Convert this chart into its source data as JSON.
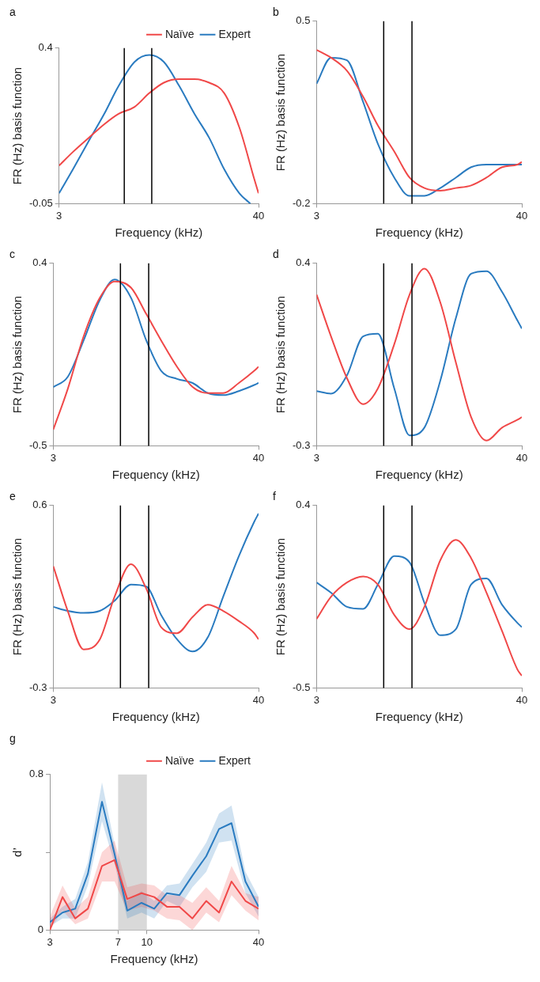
{
  "chart_data": [
    {
      "type": "line",
      "title": "a",
      "xlabel": "Frequency (kHz)",
      "ylabel": "FR (Hz) basis function",
      "log": "x",
      "xlim": [
        3,
        40
      ],
      "xticks": [
        3,
        40
      ],
      "ylim": [
        -0.05,
        0.4
      ],
      "yticks": [
        -0.05,
        0.4
      ],
      "legend": "top right",
      "ref_lines": [
        {
          "axis": "x",
          "value": 7,
          "color": "#000000"
        },
        {
          "axis": "x",
          "value": 10,
          "color": "#000000"
        }
      ],
      "x": [
        3,
        3.6,
        4.4,
        5.4,
        6.5,
        8,
        9.7,
        11.7,
        14.3,
        17.4,
        21.1,
        25.6,
        31.2,
        37.9,
        40
      ],
      "series": [
        {
          "name": "Naïve",
          "color": "#f04848",
          "values": [
            0.06,
            0.1,
            0.14,
            0.18,
            0.21,
            0.23,
            0.27,
            0.3,
            0.31,
            0.31,
            0.3,
            0.27,
            0.17,
            0.02,
            -0.02
          ]
        },
        {
          "name": "Expert",
          "color": "#2a7bc0",
          "x": [
            3,
            3.6,
            4.4,
            5.4,
            6.5,
            8,
            9.7,
            11.7,
            14.3,
            17.4,
            21.1,
            25.6,
            31.2,
            36
          ],
          "values": [
            -0.02,
            0.05,
            0.13,
            0.21,
            0.29,
            0.36,
            0.38,
            0.36,
            0.29,
            0.21,
            0.14,
            0.05,
            -0.02,
            -0.05
          ]
        }
      ]
    },
    {
      "type": "line",
      "title": "b",
      "xlabel": "Frequency (kHz)",
      "ylabel": "FR (Hz) basis function",
      "log": "x",
      "xlim": [
        3,
        40
      ],
      "xticks": [
        3,
        40
      ],
      "ylim": [
        -0.2,
        0.5
      ],
      "yticks": [
        -0.2,
        0.5
      ],
      "ref_lines": [
        {
          "axis": "x",
          "value": 7,
          "color": "#000000"
        },
        {
          "axis": "x",
          "value": 10,
          "color": "#000000"
        }
      ],
      "x": [
        3,
        3.6,
        4.4,
        5.4,
        6.5,
        8,
        9.7,
        11.7,
        14.3,
        17.4,
        21.1,
        25.6,
        31.2,
        37.9,
        40
      ],
      "series": [
        {
          "color": "#f04848",
          "values": [
            0.39,
            0.36,
            0.31,
            0.21,
            0.1,
            0.0,
            -0.1,
            -0.14,
            -0.15,
            -0.14,
            -0.13,
            -0.1,
            -0.06,
            -0.05,
            -0.04
          ]
        },
        {
          "color": "#2a7bc0",
          "values": [
            0.26,
            0.36,
            0.35,
            0.19,
            0.03,
            -0.1,
            -0.17,
            -0.17,
            -0.14,
            -0.1,
            -0.06,
            -0.05,
            -0.05,
            -0.05,
            -0.05
          ]
        }
      ]
    },
    {
      "type": "line",
      "title": "c",
      "xlabel": "Frequency (kHz)",
      "ylabel": "FR (Hz) basis function",
      "log": "x",
      "xlim": [
        3,
        40
      ],
      "xticks": [
        3,
        40
      ],
      "ylim": [
        -0.5,
        0.4
      ],
      "yticks": [
        -0.5,
        0.4
      ],
      "ref_lines": [
        {
          "axis": "x",
          "value": 7,
          "color": "#000000"
        },
        {
          "axis": "x",
          "value": 10,
          "color": "#000000"
        }
      ],
      "x": [
        3,
        3.6,
        4.4,
        5.4,
        6.5,
        8,
        9.7,
        11.7,
        14.3,
        17.4,
        21.1,
        25.6,
        31.2,
        37.9,
        40
      ],
      "series": [
        {
          "color": "#f04848",
          "values": [
            -0.42,
            -0.22,
            0.04,
            0.23,
            0.31,
            0.28,
            0.15,
            0.02,
            -0.11,
            -0.21,
            -0.24,
            -0.24,
            -0.19,
            -0.13,
            -0.11
          ]
        },
        {
          "color": "#2a7bc0",
          "values": [
            -0.21,
            -0.16,
            0.02,
            0.22,
            0.32,
            0.23,
            0.02,
            -0.13,
            -0.17,
            -0.19,
            -0.24,
            -0.25,
            -0.23,
            -0.2,
            -0.19
          ]
        }
      ]
    },
    {
      "type": "line",
      "title": "d",
      "xlabel": "Frequency (kHz)",
      "ylabel": "FR (Hz) basis function",
      "log": "x",
      "xlim": [
        3,
        40
      ],
      "xticks": [
        3,
        40
      ],
      "ylim": [
        -0.3,
        0.4
      ],
      "yticks": [
        -0.3,
        0.4
      ],
      "ref_lines": [
        {
          "axis": "x",
          "value": 7,
          "color": "#000000"
        },
        {
          "axis": "x",
          "value": 10,
          "color": "#000000"
        }
      ],
      "x": [
        3,
        3.6,
        4.4,
        5.4,
        6.5,
        8,
        9.7,
        11.7,
        14.3,
        17.4,
        21.1,
        25.6,
        31.2,
        37.9,
        40
      ],
      "series": [
        {
          "color": "#f04848",
          "values": [
            0.28,
            0.12,
            -0.04,
            -0.14,
            -0.08,
            0.09,
            0.28,
            0.38,
            0.25,
            0.02,
            -0.19,
            -0.28,
            -0.23,
            -0.2,
            -0.19
          ]
        },
        {
          "color": "#2a7bc0",
          "values": [
            -0.09,
            -0.1,
            -0.03,
            0.12,
            0.13,
            -0.08,
            -0.26,
            -0.23,
            -0.05,
            0.19,
            0.36,
            0.37,
            0.29,
            0.18,
            0.15
          ]
        }
      ]
    },
    {
      "type": "line",
      "title": "e",
      "xlabel": "Frequency (kHz)",
      "ylabel": "FR (Hz) basis function",
      "log": "x",
      "xlim": [
        3,
        40
      ],
      "xticks": [
        3,
        40
      ],
      "ylim": [
        -0.3,
        0.6
      ],
      "yticks": [
        -0.3,
        0.6
      ],
      "ref_lines": [
        {
          "axis": "x",
          "value": 7,
          "color": "#000000"
        },
        {
          "axis": "x",
          "value": 10,
          "color": "#000000"
        }
      ],
      "x": [
        3,
        3.6,
        4.4,
        5.4,
        6.5,
        8,
        9.7,
        11.7,
        14.3,
        17.4,
        21.1,
        25.6,
        31.2,
        37.9,
        40
      ],
      "series": [
        {
          "color": "#f04848",
          "values": [
            0.3,
            0.08,
            -0.11,
            -0.06,
            0.15,
            0.31,
            0.19,
            0.0,
            -0.03,
            0.05,
            0.11,
            0.08,
            0.03,
            -0.03,
            -0.06
          ]
        },
        {
          "color": "#2a7bc0",
          "values": [
            0.1,
            0.08,
            0.07,
            0.08,
            0.13,
            0.21,
            0.2,
            0.06,
            -0.06,
            -0.12,
            -0.05,
            0.15,
            0.35,
            0.52,
            0.56
          ]
        }
      ]
    },
    {
      "type": "line",
      "title": "f",
      "xlabel": "Frequency (kHz)",
      "ylabel": "FR (Hz) basis function",
      "log": "x",
      "xlim": [
        3,
        40
      ],
      "xticks": [
        3,
        40
      ],
      "ylim": [
        -0.5,
        0.4
      ],
      "yticks": [
        -0.5,
        0.4
      ],
      "ref_lines": [
        {
          "axis": "x",
          "value": 7,
          "color": "#000000"
        },
        {
          "axis": "x",
          "value": 10,
          "color": "#000000"
        }
      ],
      "x": [
        3,
        3.6,
        4.4,
        5.4,
        6.5,
        8,
        9.7,
        11.7,
        14.3,
        17.4,
        21.1,
        25.6,
        31.2,
        37.9,
        40
      ],
      "series": [
        {
          "color": "#f04848",
          "values": [
            -0.16,
            -0.05,
            0.02,
            0.05,
            0.01,
            -0.14,
            -0.21,
            -0.1,
            0.13,
            0.23,
            0.14,
            -0.03,
            -0.22,
            -0.41,
            -0.44
          ]
        },
        {
          "color": "#2a7bc0",
          "values": [
            0.02,
            -0.03,
            -0.1,
            -0.11,
            0.01,
            0.15,
            0.12,
            -0.08,
            -0.24,
            -0.21,
            0.01,
            0.04,
            -0.09,
            -0.18,
            -0.2
          ]
        }
      ]
    },
    {
      "type": "line",
      "title": "g",
      "xlabel": "Frequency (kHz)",
      "ylabel": "d’",
      "log": "x",
      "xlim": [
        3,
        40
      ],
      "xticks": [
        3,
        7,
        10,
        40
      ],
      "ylim": [
        0,
        0.8
      ],
      "yticks": [
        0,
        {
          "value": 0.4,
          "label": null
        },
        0.8
      ],
      "legend": "top right",
      "bands": [
        {
          "axis": "x",
          "from": 7,
          "to": 10,
          "color": "#d9d9d9"
        }
      ],
      "x": [
        3,
        3.51,
        4.11,
        4.81,
        5.73,
        6.7,
        7.84,
        9.36,
        10.96,
        12.83,
        15.0,
        17.6,
        20.9,
        24.5,
        28.6,
        34.0,
        40
      ],
      "series": [
        {
          "name": "Naïve",
          "color": "#f04848",
          "values": [
            0,
            0.17,
            0.06,
            0.11,
            0.33,
            0.36,
            0.16,
            0.19,
            0.17,
            0.12,
            0.12,
            0.06,
            0.15,
            0.09,
            0.25,
            0.15,
            0.11
          ],
          "lower": [
            0,
            0.1,
            0.03,
            0.06,
            0.25,
            0.25,
            0.1,
            0.12,
            0.1,
            0.06,
            0.05,
            0,
            0.09,
            0.04,
            0.18,
            0.1,
            0.05
          ],
          "upper": [
            0.07,
            0.23,
            0.11,
            0.17,
            0.4,
            0.46,
            0.22,
            0.24,
            0.23,
            0.18,
            0.18,
            0.14,
            0.22,
            0.15,
            0.33,
            0.19,
            0.17
          ]
        },
        {
          "name": "Expert",
          "color": "#2a7bc0",
          "values": [
            0.04,
            0.09,
            0.11,
            0.29,
            0.66,
            0.39,
            0.1,
            0.14,
            0.11,
            0.19,
            0.18,
            0.28,
            0.38,
            0.52,
            0.55,
            0.25,
            0.12
          ],
          "lower": [
            0.02,
            0.06,
            0.06,
            0.23,
            0.56,
            0.34,
            0.06,
            0.09,
            0.06,
            0.15,
            0.12,
            0.22,
            0.3,
            0.45,
            0.46,
            0.19,
            0.07
          ],
          "upper": [
            0.06,
            0.12,
            0.16,
            0.35,
            0.76,
            0.44,
            0.15,
            0.2,
            0.15,
            0.23,
            0.24,
            0.34,
            0.45,
            0.6,
            0.64,
            0.3,
            0.17
          ]
        }
      ]
    }
  ]
}
